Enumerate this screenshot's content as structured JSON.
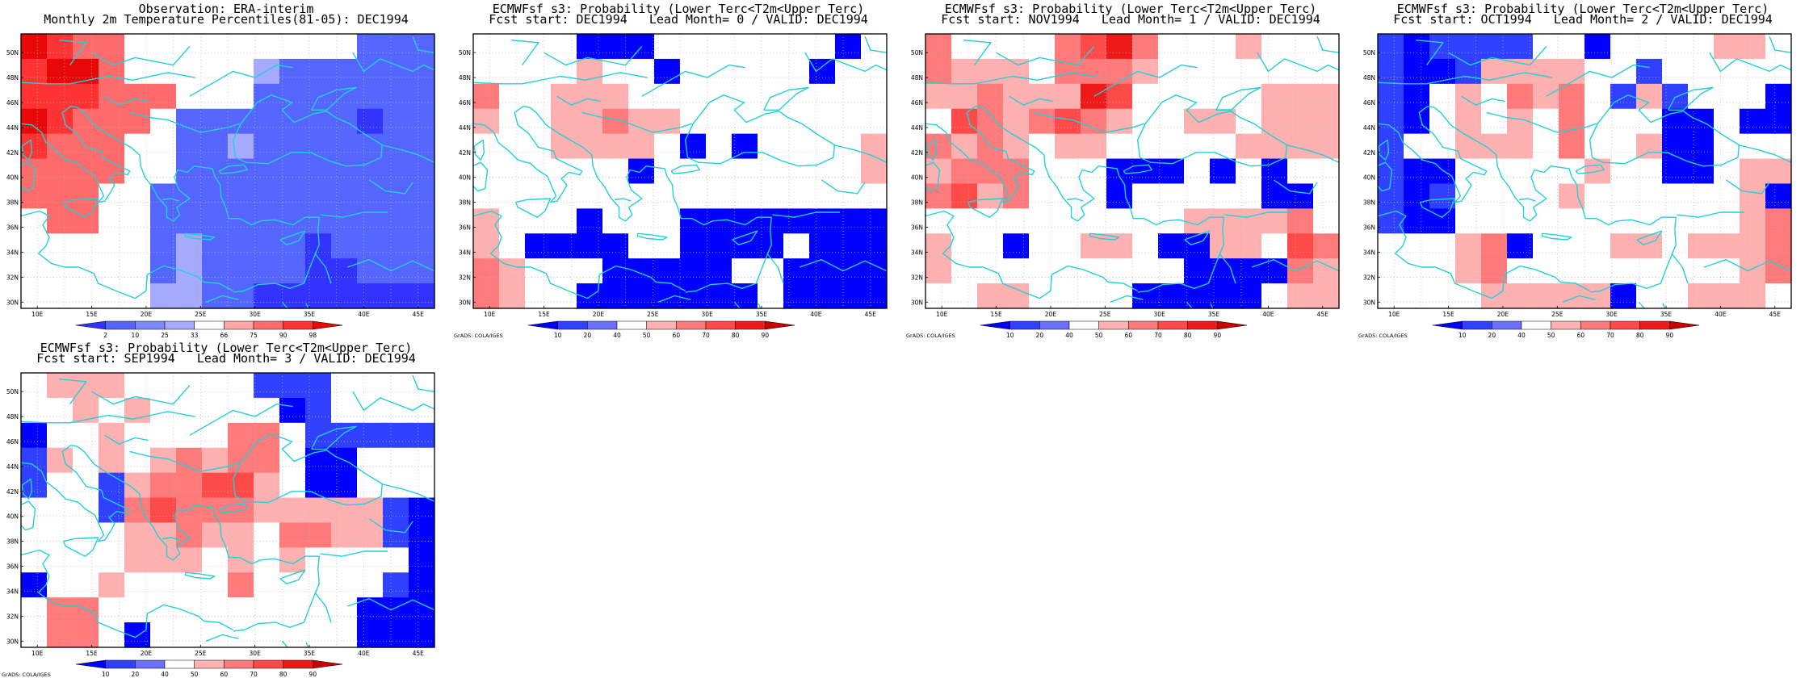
{
  "colors": {
    "cyan": "#22d0d6",
    "grid": "#b8b8b8",
    "obs": [
      "#3333ff",
      "#5566ff",
      "#7b88ff",
      "#a6aaff",
      "#ffffff",
      "#ffa6a6",
      "#ff6b6b",
      "#ff3333",
      "#e80808"
    ],
    "prob": [
      "#0000ff",
      "#3040ff",
      "#6a70ff",
      "#ffffff",
      "#ffb0b0",
      "#ff7a7a",
      "#ff4a4a",
      "#ee1a1a",
      "#c80000"
    ]
  },
  "axes": {
    "lat_labels": [
      "50N",
      "48N",
      "46N",
      "44N",
      "42N",
      "40N",
      "38N",
      "36N",
      "34N",
      "32N",
      "30N"
    ],
    "lon_labels": [
      "10E",
      "15E",
      "20E",
      "25E",
      "30E",
      "35E",
      "40E",
      "45E"
    ]
  },
  "panels": [
    {
      "id": "obs",
      "title_line1": "Observation: ERA-interim",
      "title_line2": "Monthly 2m Temperature Percentiles(81-05): DEC1994",
      "colorbar_labels": [
        "2",
        "10",
        "25",
        "33",
        "66",
        "75",
        "90",
        "98"
      ],
      "palette": "obs",
      "footer": "",
      "grid": [
        [
          8,
          7,
          6,
          6,
          4,
          4,
          4,
          4,
          4,
          4,
          4,
          4,
          4,
          1,
          1,
          1
        ],
        [
          7,
          8,
          8,
          6,
          4,
          4,
          4,
          4,
          4,
          3,
          1,
          1,
          1,
          1,
          1,
          1
        ],
        [
          7,
          7,
          7,
          6,
          6,
          6,
          4,
          4,
          4,
          1,
          1,
          1,
          1,
          1,
          1,
          1
        ],
        [
          8,
          7,
          6,
          6,
          6,
          4,
          1,
          1,
          1,
          1,
          1,
          1,
          1,
          0,
          1,
          1
        ],
        [
          7,
          6,
          6,
          6,
          4,
          4,
          1,
          1,
          3,
          1,
          1,
          1,
          1,
          1,
          1,
          1
        ],
        [
          6,
          6,
          6,
          6,
          4,
          4,
          1,
          1,
          1,
          1,
          1,
          1,
          1,
          1,
          1,
          1
        ],
        [
          6,
          6,
          6,
          4,
          4,
          1,
          1,
          1,
          1,
          1,
          1,
          1,
          1,
          1,
          1,
          1
        ],
        [
          4,
          6,
          6,
          4,
          4,
          1,
          1,
          1,
          1,
          1,
          1,
          1,
          1,
          1,
          1,
          1
        ],
        [
          4,
          4,
          4,
          4,
          4,
          1,
          3,
          1,
          1,
          1,
          1,
          0,
          1,
          1,
          1,
          1
        ],
        [
          4,
          4,
          4,
          4,
          4,
          1,
          3,
          1,
          1,
          1,
          1,
          0,
          0,
          1,
          1,
          1
        ],
        [
          4,
          4,
          4,
          4,
          4,
          3,
          3,
          1,
          1,
          0,
          0,
          0,
          0,
          0,
          0,
          0
        ]
      ]
    },
    {
      "id": "lead0",
      "title_line1": "ECMWFsf s3: Probability (Lower Terc<T2m<Upper Terc)",
      "title_line2": "Fcst start: DEC1994   Lead Month= 0 / VALID: DEC1994",
      "colorbar_labels": [
        "10",
        "20",
        "40",
        "50",
        "60",
        "70",
        "80",
        "90"
      ],
      "palette": "prob",
      "footer": "GrADS: COLA/IGES",
      "grid": [
        [
          3,
          3,
          3,
          3,
          0,
          0,
          0,
          3,
          3,
          3,
          3,
          3,
          3,
          3,
          0,
          3
        ],
        [
          3,
          3,
          3,
          3,
          4,
          3,
          3,
          0,
          3,
          3,
          3,
          3,
          3,
          0,
          3,
          3
        ],
        [
          5,
          3,
          3,
          4,
          4,
          4,
          3,
          3,
          3,
          3,
          3,
          3,
          3,
          3,
          3,
          3
        ],
        [
          4,
          3,
          3,
          4,
          4,
          5,
          4,
          4,
          3,
          3,
          3,
          3,
          3,
          3,
          3,
          3
        ],
        [
          3,
          3,
          3,
          4,
          4,
          4,
          4,
          3,
          0,
          3,
          0,
          3,
          3,
          3,
          3,
          4
        ],
        [
          3,
          3,
          3,
          3,
          3,
          3,
          0,
          3,
          3,
          3,
          3,
          3,
          3,
          3,
          3,
          4
        ],
        [
          3,
          3,
          3,
          3,
          3,
          3,
          3,
          3,
          3,
          3,
          3,
          3,
          3,
          3,
          3,
          3
        ],
        [
          4,
          3,
          3,
          3,
          0,
          3,
          3,
          3,
          0,
          0,
          0,
          0,
          0,
          0,
          0,
          0
        ],
        [
          4,
          3,
          0,
          0,
          0,
          0,
          3,
          3,
          0,
          0,
          0,
          0,
          3,
          0,
          0,
          0
        ],
        [
          5,
          4,
          3,
          3,
          3,
          0,
          0,
          0,
          0,
          0,
          3,
          3,
          0,
          0,
          0,
          0
        ],
        [
          5,
          4,
          3,
          3,
          0,
          0,
          0,
          0,
          0,
          0,
          0,
          3,
          0,
          0,
          0,
          0
        ]
      ]
    },
    {
      "id": "lead1",
      "title_line1": "ECMWFsf s3: Probability (Lower Terc<T2m<Upper Terc)",
      "title_line2": "Fcst start: NOV1994   Lead Month= 1 / VALID: DEC1994",
      "colorbar_labels": [
        "10",
        "20",
        "40",
        "50",
        "60",
        "70",
        "80",
        "90"
      ],
      "palette": "prob",
      "footer": "GrADS: COLA/IGES",
      "grid": [
        [
          5,
          3,
          3,
          3,
          3,
          5,
          6,
          7,
          5,
          3,
          3,
          3,
          4,
          3,
          3,
          3
        ],
        [
          5,
          4,
          4,
          4,
          3,
          5,
          5,
          5,
          4,
          3,
          3,
          3,
          3,
          3,
          3,
          3
        ],
        [
          4,
          4,
          5,
          4,
          4,
          4,
          7,
          6,
          3,
          3,
          3,
          3,
          3,
          4,
          4,
          4
        ],
        [
          3,
          6,
          5,
          4,
          5,
          6,
          5,
          4,
          3,
          3,
          4,
          4,
          3,
          4,
          4,
          4
        ],
        [
          5,
          4,
          5,
          4,
          3,
          4,
          4,
          3,
          3,
          3,
          3,
          3,
          4,
          4,
          4,
          4
        ],
        [
          4,
          5,
          5,
          5,
          3,
          3,
          3,
          0,
          0,
          0,
          3,
          0,
          3,
          0,
          3,
          3
        ],
        [
          5,
          6,
          4,
          5,
          3,
          3,
          3,
          0,
          3,
          3,
          3,
          3,
          3,
          0,
          0,
          3
        ],
        [
          3,
          3,
          3,
          3,
          3,
          3,
          3,
          3,
          3,
          3,
          4,
          4,
          4,
          4,
          5,
          3
        ],
        [
          4,
          3,
          3,
          0,
          3,
          3,
          4,
          4,
          3,
          0,
          0,
          4,
          4,
          3,
          6,
          5
        ],
        [
          4,
          3,
          3,
          3,
          3,
          3,
          3,
          3,
          3,
          3,
          0,
          0,
          0,
          0,
          5,
          4
        ],
        [
          3,
          3,
          4,
          4,
          3,
          3,
          3,
          3,
          0,
          0,
          0,
          0,
          0,
          3,
          4,
          4
        ]
      ]
    },
    {
      "id": "lead2",
      "title_line1": "ECMWFsf s3: Probability (Lower Terc<T2m<Upper Terc)",
      "title_line2": "Fcst start: OCT1994   Lead Month= 2 / VALID: DEC1994",
      "colorbar_labels": [
        "10",
        "20",
        "40",
        "50",
        "60",
        "70",
        "80",
        "90"
      ],
      "palette": "prob",
      "footer": "GrADS: COLA/IGES",
      "grid": [
        [
          1,
          0,
          1,
          1,
          1,
          1,
          3,
          3,
          0,
          3,
          3,
          3,
          3,
          4,
          4,
          3
        ],
        [
          1,
          0,
          0,
          1,
          4,
          4,
          4,
          4,
          3,
          3,
          1,
          3,
          3,
          3,
          3,
          3
        ],
        [
          1,
          0,
          3,
          4,
          3,
          5,
          4,
          5,
          3,
          1,
          4,
          1,
          3,
          3,
          3,
          0
        ],
        [
          1,
          0,
          3,
          4,
          3,
          4,
          3,
          5,
          3,
          3,
          3,
          0,
          0,
          3,
          0,
          0
        ],
        [
          1,
          3,
          3,
          4,
          4,
          4,
          3,
          5,
          3,
          3,
          4,
          0,
          0,
          3,
          3,
          3
        ],
        [
          1,
          0,
          0,
          3,
          3,
          3,
          3,
          3,
          4,
          3,
          3,
          0,
          0,
          3,
          4,
          4
        ],
        [
          1,
          0,
          1,
          3,
          3,
          3,
          3,
          4,
          3,
          3,
          3,
          3,
          3,
          3,
          4,
          0
        ],
        [
          1,
          0,
          0,
          3,
          3,
          3,
          3,
          3,
          3,
          3,
          3,
          3,
          3,
          3,
          4,
          5
        ],
        [
          3,
          3,
          3,
          4,
          5,
          0,
          3,
          3,
          3,
          4,
          4,
          3,
          4,
          4,
          4,
          5
        ],
        [
          3,
          3,
          3,
          4,
          5,
          3,
          3,
          3,
          3,
          3,
          3,
          3,
          3,
          3,
          4,
          5
        ],
        [
          3,
          3,
          3,
          3,
          4,
          4,
          4,
          4,
          4,
          0,
          3,
          3,
          4,
          4,
          4,
          3
        ]
      ]
    },
    {
      "id": "lead3",
      "title_line1": "ECMWFsf s3: Probability (Lower Terc<T2m<Upper Terc)",
      "title_line2": "Fcst start: SEP1994   Lead Month= 3 / VALID: DEC1994",
      "colorbar_labels": [
        "10",
        "20",
        "40",
        "50",
        "60",
        "70",
        "80",
        "90"
      ],
      "palette": "prob",
      "footer": "GrADS: COLA/IGES",
      "grid": [
        [
          3,
          4,
          4,
          4,
          3,
          3,
          3,
          3,
          3,
          1,
          1,
          1,
          3,
          3,
          3,
          3
        ],
        [
          3,
          3,
          4,
          3,
          4,
          3,
          3,
          3,
          3,
          3,
          0,
          1,
          3,
          3,
          3,
          3
        ],
        [
          0,
          3,
          3,
          4,
          3,
          3,
          3,
          3,
          5,
          5,
          3,
          1,
          1,
          1,
          1,
          1
        ],
        [
          1,
          4,
          3,
          4,
          3,
          4,
          5,
          4,
          5,
          5,
          3,
          0,
          0,
          3,
          3,
          3
        ],
        [
          1,
          3,
          3,
          1,
          4,
          5,
          5,
          6,
          6,
          4,
          3,
          0,
          0,
          3,
          3,
          3
        ],
        [
          3,
          3,
          3,
          1,
          5,
          6,
          5,
          5,
          5,
          4,
          4,
          4,
          4,
          4,
          1,
          0
        ],
        [
          3,
          3,
          3,
          3,
          4,
          4,
          5,
          4,
          4,
          3,
          5,
          5,
          4,
          4,
          1,
          0
        ],
        [
          3,
          3,
          3,
          3,
          4,
          4,
          4,
          3,
          4,
          3,
          4,
          3,
          3,
          3,
          3,
          0
        ],
        [
          0,
          3,
          3,
          4,
          3,
          3,
          3,
          3,
          5,
          3,
          3,
          3,
          3,
          3,
          1,
          0
        ],
        [
          3,
          5,
          5,
          3,
          3,
          3,
          3,
          3,
          3,
          3,
          3,
          3,
          3,
          0,
          0,
          0
        ],
        [
          3,
          5,
          5,
          3,
          0,
          3,
          3,
          3,
          3,
          3,
          3,
          3,
          3,
          0,
          0,
          0
        ]
      ]
    }
  ]
}
